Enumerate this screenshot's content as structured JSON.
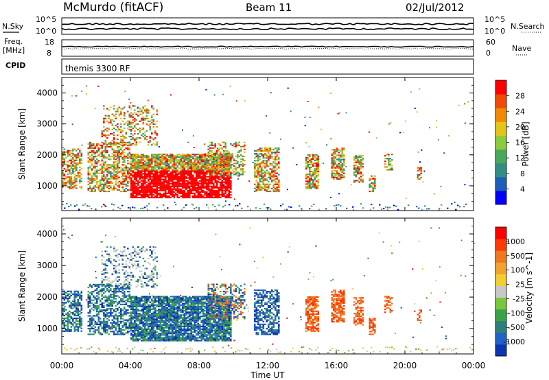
{
  "header": {
    "station": "McMurdo (fitACF)",
    "beam": "Beam 11",
    "date": "02/Jul/2012"
  },
  "left_labels": {
    "nsky": "N.Sky",
    "freq_line1": "Freq.",
    "freq_line2": "[MHz]",
    "cpid": "CPID"
  },
  "right_labels": {
    "nsearch": "N.Search",
    "nave": "Nave"
  },
  "cpid_text": "themis 3300 RF",
  "panel_ticks": {
    "noise_left": [
      "10^5",
      "10^0"
    ],
    "noise_right": [
      "10^5",
      "10^0"
    ],
    "freq_left": [
      "18",
      "8"
    ],
    "nave_right": [
      "60",
      "0"
    ]
  },
  "chart_data": [
    {
      "type": "heatmap",
      "name": "power",
      "ylabel": "Slant Range [km]",
      "colorbar_label": "Power [dB]",
      "colorbar_ticks": [
        "28",
        "24",
        "20",
        "16",
        "12",
        "8",
        "4"
      ],
      "colors": [
        "#0000ff",
        "#1d5fb8",
        "#2f8f86",
        "#4aa85a",
        "#8ccc3a",
        "#e6c417",
        "#f28a00",
        "#f24a00",
        "#ff0000"
      ],
      "ylim": [
        200,
        4500
      ],
      "yticks": [
        "1000",
        "2000",
        "3000",
        "4000"
      ]
    },
    {
      "type": "heatmap",
      "name": "velocity",
      "ylabel": "Slant Range [km]",
      "colorbar_label": "Velocity [m s^-1]",
      "colorbar_ticks": [
        "1000",
        "500",
        "100",
        "25",
        "-25",
        "-100",
        "-500",
        "-1000"
      ],
      "colors": [
        "#0a35b0",
        "#1f62c9",
        "#2e7f7a",
        "#3aa246",
        "#78c83a",
        "#c8c8c8",
        "#f3ce30",
        "#f2a22e",
        "#f0781e",
        "#ff3a00",
        "#ff0000"
      ],
      "ylim": [
        200,
        4500
      ],
      "yticks": [
        "1000",
        "2000",
        "3000",
        "4000"
      ]
    }
  ],
  "time_axis": {
    "xlabel": "Time UT",
    "ticks": [
      "00:00",
      "04:00",
      "08:00",
      "12:00",
      "16:00",
      "20:00",
      "00:00"
    ],
    "xlim_hours": [
      0,
      24
    ]
  }
}
